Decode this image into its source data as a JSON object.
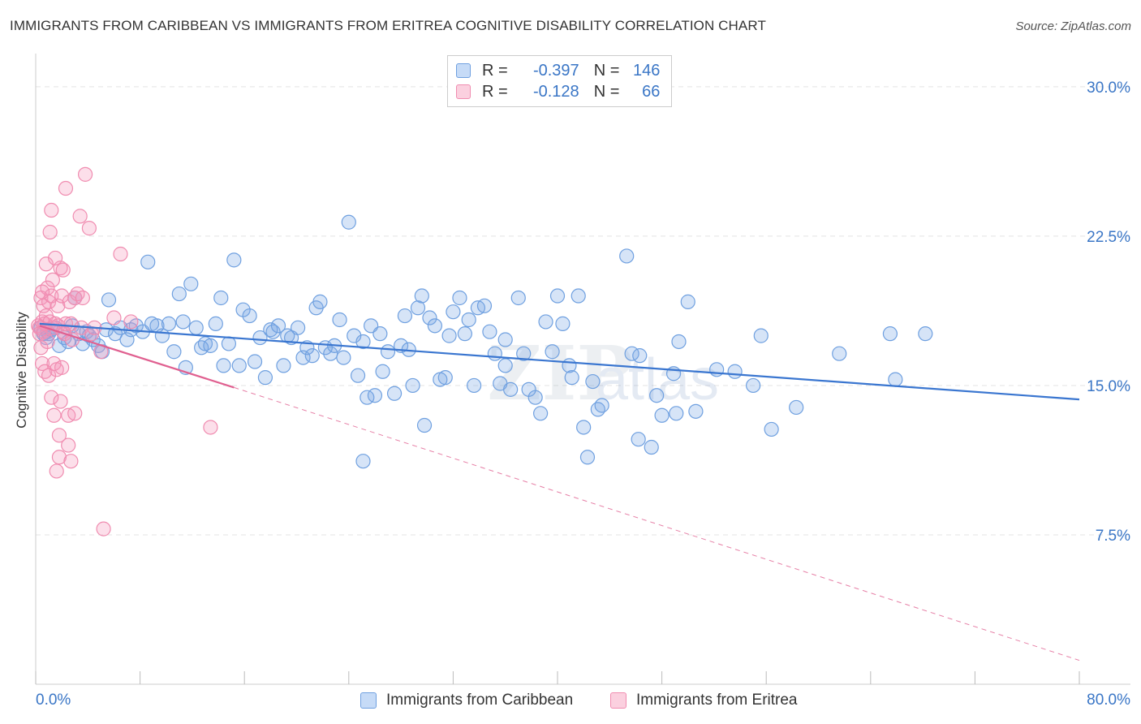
{
  "title": "IMMIGRANTS FROM CARIBBEAN VS IMMIGRANTS FROM ERITREA COGNITIVE DISABILITY CORRELATION CHART",
  "source": "Source: ZipAtlas.com",
  "legend": {
    "row1": {
      "r_label": "R =",
      "r_value": "-0.397",
      "n_label": "N =",
      "n_value": "146"
    },
    "row2": {
      "r_label": "R =",
      "r_value": "-0.128",
      "n_label": "N =",
      "n_value": "66"
    }
  },
  "bottom_legend": {
    "caribbean": "Immigrants from Caribbean",
    "eritrea": "Immigrants from Eritrea"
  },
  "x_tick_left": "0.0%",
  "x_tick_right": "80.0%",
  "colors": {
    "caribbean": "#6fa0e0",
    "caribbean_line": "#3a76d0",
    "eritrea": "#f08cb0",
    "eritrea_line": "#e06090",
    "axis_text": "#3a76c6"
  },
  "chart_data": {
    "type": "scatter",
    "title": "IMMIGRANTS FROM CARIBBEAN VS IMMIGRANTS FROM ERITREA COGNITIVE DISABILITY CORRELATION CHART",
    "xlabel": "",
    "ylabel": "Cognitive Disability",
    "xlim": [
      0,
      80
    ],
    "ylim": [
      0,
      31.3
    ],
    "y_ticks": [
      {
        "v": 7.5,
        "label": "7.5%"
      },
      {
        "v": 15.0,
        "label": "15.0%"
      },
      {
        "v": 22.5,
        "label": "22.5%"
      },
      {
        "v": 30.0,
        "label": "30.0%"
      }
    ],
    "grid": true,
    "legend_position": "top-center",
    "series": [
      {
        "name": "Immigrants from Caribbean",
        "r": -0.397,
        "n": 146,
        "trend": {
          "x1": 0.3,
          "y1": 18.1,
          "x2": 80.0,
          "y2": 14.3
        },
        "points": [
          [
            0.4,
            17.9
          ],
          [
            0.6,
            17.6
          ],
          [
            0.8,
            17.4
          ],
          [
            0.9,
            17.7
          ],
          [
            1.0,
            17.6
          ],
          [
            1.2,
            17.8
          ],
          [
            1.5,
            17.9
          ],
          [
            1.8,
            17.0
          ],
          [
            2.2,
            17.4
          ],
          [
            2.5,
            17.2
          ],
          [
            2.8,
            18.0
          ],
          [
            3.0,
            19.4
          ],
          [
            3.3,
            17.6
          ],
          [
            3.6,
            17.1
          ],
          [
            3.9,
            17.7
          ],
          [
            4.1,
            17.5
          ],
          [
            4.4,
            17.3
          ],
          [
            4.8,
            17.0
          ],
          [
            5.1,
            16.7
          ],
          [
            5.4,
            17.8
          ],
          [
            5.6,
            19.3
          ],
          [
            6.1,
            17.6
          ],
          [
            6.5,
            17.9
          ],
          [
            7.0,
            17.3
          ],
          [
            7.3,
            17.8
          ],
          [
            7.7,
            18.0
          ],
          [
            8.2,
            17.7
          ],
          [
            8.6,
            21.2
          ],
          [
            8.9,
            18.1
          ],
          [
            9.3,
            18.0
          ],
          [
            9.7,
            17.5
          ],
          [
            10.2,
            18.1
          ],
          [
            10.6,
            16.7
          ],
          [
            11.0,
            19.6
          ],
          [
            11.3,
            18.2
          ],
          [
            11.5,
            15.9
          ],
          [
            11.9,
            20.1
          ],
          [
            12.3,
            17.9
          ],
          [
            12.7,
            16.9
          ],
          [
            13.0,
            17.1
          ],
          [
            13.4,
            17.0
          ],
          [
            13.8,
            18.1
          ],
          [
            14.2,
            19.4
          ],
          [
            14.4,
            16.0
          ],
          [
            14.8,
            17.1
          ],
          [
            15.2,
            21.3
          ],
          [
            15.6,
            16.0
          ],
          [
            15.9,
            18.8
          ],
          [
            16.4,
            18.5
          ],
          [
            16.8,
            16.2
          ],
          [
            17.2,
            17.4
          ],
          [
            17.6,
            15.4
          ],
          [
            18.0,
            17.8
          ],
          [
            18.2,
            17.7
          ],
          [
            18.6,
            18.0
          ],
          [
            19.0,
            16.0
          ],
          [
            19.3,
            17.5
          ],
          [
            19.6,
            17.4
          ],
          [
            20.1,
            17.9
          ],
          [
            20.5,
            16.4
          ],
          [
            20.8,
            16.9
          ],
          [
            21.2,
            16.5
          ],
          [
            21.5,
            18.9
          ],
          [
            21.8,
            19.2
          ],
          [
            22.2,
            16.9
          ],
          [
            22.6,
            16.6
          ],
          [
            22.9,
            17.0
          ],
          [
            23.3,
            18.3
          ],
          [
            23.6,
            16.4
          ],
          [
            24.0,
            23.2
          ],
          [
            24.4,
            17.5
          ],
          [
            24.7,
            15.5
          ],
          [
            25.1,
            17.2
          ],
          [
            25.4,
            14.4
          ],
          [
            25.7,
            18.0
          ],
          [
            26.0,
            14.5
          ],
          [
            26.4,
            17.6
          ],
          [
            26.6,
            15.7
          ],
          [
            27.0,
            16.7
          ],
          [
            27.5,
            14.6
          ],
          [
            28.0,
            17.0
          ],
          [
            28.3,
            18.5
          ],
          [
            28.6,
            16.8
          ],
          [
            28.9,
            15.0
          ],
          [
            29.3,
            18.9
          ],
          [
            29.6,
            19.5
          ],
          [
            29.8,
            13.0
          ],
          [
            30.2,
            18.4
          ],
          [
            30.6,
            18.0
          ],
          [
            31.0,
            15.3
          ],
          [
            31.4,
            15.4
          ],
          [
            31.7,
            17.5
          ],
          [
            32.0,
            18.7
          ],
          [
            32.5,
            19.4
          ],
          [
            32.9,
            17.6
          ],
          [
            33.2,
            18.3
          ],
          [
            33.6,
            15.0
          ],
          [
            33.9,
            18.9
          ],
          [
            34.4,
            19.0
          ],
          [
            34.8,
            17.7
          ],
          [
            35.2,
            16.6
          ],
          [
            35.6,
            15.1
          ],
          [
            36.0,
            17.3
          ],
          [
            36.4,
            14.8
          ],
          [
            37.0,
            19.4
          ],
          [
            37.4,
            16.6
          ],
          [
            37.8,
            14.8
          ],
          [
            38.3,
            14.4
          ],
          [
            38.7,
            13.6
          ],
          [
            39.1,
            18.2
          ],
          [
            39.6,
            16.7
          ],
          [
            40.0,
            19.5
          ],
          [
            40.4,
            18.1
          ],
          [
            40.9,
            16.0
          ],
          [
            41.1,
            15.4
          ],
          [
            41.6,
            19.5
          ],
          [
            42.0,
            12.9
          ],
          [
            42.3,
            11.4
          ],
          [
            42.7,
            15.2
          ],
          [
            43.1,
            13.8
          ],
          [
            43.4,
            14.0
          ],
          [
            45.3,
            21.5
          ],
          [
            45.7,
            16.6
          ],
          [
            46.2,
            12.3
          ],
          [
            47.2,
            11.9
          ],
          [
            47.6,
            14.5
          ],
          [
            48.0,
            13.5
          ],
          [
            48.9,
            15.6
          ],
          [
            49.1,
            13.6
          ],
          [
            49.3,
            17.2
          ],
          [
            50.0,
            19.2
          ],
          [
            50.6,
            13.7
          ],
          [
            52.2,
            15.8
          ],
          [
            53.6,
            15.7
          ],
          [
            55.0,
            15.0
          ],
          [
            55.6,
            17.5
          ],
          [
            56.4,
            12.8
          ],
          [
            58.3,
            13.9
          ],
          [
            61.6,
            16.6
          ],
          [
            65.5,
            17.6
          ],
          [
            65.9,
            15.3
          ],
          [
            68.2,
            17.6
          ],
          [
            25.1,
            11.2
          ],
          [
            36.0,
            16.0
          ],
          [
            46.3,
            16.5
          ]
        ]
      },
      {
        "name": "Immigrants from Eritrea",
        "r": -0.128,
        "n": 66,
        "trend": {
          "x1": 0.3,
          "y1": 18.0,
          "x2": 15.2,
          "y2": 14.9,
          "dash_to_x": 80.0,
          "dash_to_y": 1.2
        },
        "points": [
          [
            0.2,
            18.0
          ],
          [
            0.3,
            17.9
          ],
          [
            0.3,
            17.6
          ],
          [
            0.4,
            19.4
          ],
          [
            0.4,
            16.9
          ],
          [
            0.5,
            18.2
          ],
          [
            0.5,
            16.1
          ],
          [
            0.6,
            19.0
          ],
          [
            0.6,
            17.7
          ],
          [
            0.7,
            18.1
          ],
          [
            0.7,
            15.7
          ],
          [
            0.8,
            21.1
          ],
          [
            0.8,
            18.5
          ],
          [
            0.9,
            19.9
          ],
          [
            0.9,
            17.2
          ],
          [
            1.0,
            19.2
          ],
          [
            1.0,
            15.5
          ],
          [
            1.1,
            22.7
          ],
          [
            1.1,
            18.2
          ],
          [
            1.2,
            23.8
          ],
          [
            1.2,
            19.5
          ],
          [
            1.2,
            14.4
          ],
          [
            1.3,
            20.3
          ],
          [
            1.3,
            17.9
          ],
          [
            1.4,
            13.5
          ],
          [
            1.4,
            16.1
          ],
          [
            1.5,
            21.4
          ],
          [
            1.5,
            18.1
          ],
          [
            1.6,
            15.8
          ],
          [
            1.6,
            10.7
          ],
          [
            1.7,
            19.0
          ],
          [
            1.7,
            18.0
          ],
          [
            1.8,
            12.5
          ],
          [
            1.8,
            11.4
          ],
          [
            1.9,
            20.9
          ],
          [
            1.9,
            14.2
          ],
          [
            2.0,
            15.9
          ],
          [
            2.0,
            19.5
          ],
          [
            2.1,
            20.8
          ],
          [
            2.1,
            17.7
          ],
          [
            2.2,
            17.6
          ],
          [
            2.3,
            18.1
          ],
          [
            2.3,
            24.9
          ],
          [
            2.5,
            13.5
          ],
          [
            2.5,
            12.0
          ],
          [
            2.6,
            19.2
          ],
          [
            2.7,
            11.2
          ],
          [
            2.7,
            18.1
          ],
          [
            2.8,
            17.3
          ],
          [
            3.0,
            13.6
          ],
          [
            3.0,
            19.4
          ],
          [
            3.2,
            19.6
          ],
          [
            3.4,
            23.5
          ],
          [
            3.5,
            17.9
          ],
          [
            3.6,
            19.4
          ],
          [
            3.8,
            25.6
          ],
          [
            4.1,
            22.9
          ],
          [
            4.3,
            17.6
          ],
          [
            4.5,
            17.9
          ],
          [
            5.0,
            16.7
          ],
          [
            5.2,
            7.8
          ],
          [
            6.0,
            18.4
          ],
          [
            6.5,
            21.6
          ],
          [
            7.3,
            18.2
          ],
          [
            13.4,
            12.9
          ],
          [
            0.5,
            19.7
          ]
        ]
      }
    ]
  }
}
